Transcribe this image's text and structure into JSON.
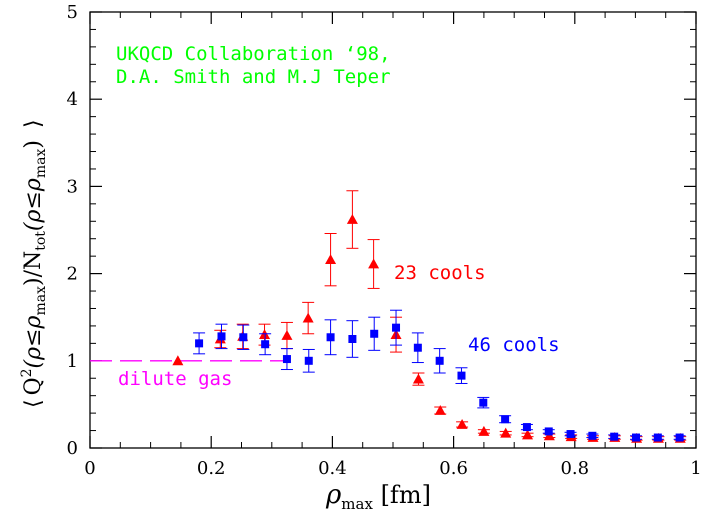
{
  "chart_data": {
    "type": "scatter",
    "xlabel": {
      "main": "ρ",
      "sub": "max",
      "unit": " [fm]"
    },
    "ylabel": {
      "open": "⟨",
      "q": "Q",
      "exp": "2",
      "arg1": "(ρ≤ρ",
      "sub1": "max",
      "close1": ")",
      "slash": "/",
      "n": "N",
      "sub2": "tot",
      "arg2": "(ρ≤ρ",
      "sub3": "max",
      "close2": ")",
      "end": "⟩"
    },
    "xlim": [
      0,
      1
    ],
    "ylim": [
      0,
      5
    ],
    "x_ticks": [
      "0",
      "0.2",
      "0.4",
      "0.6",
      "0.8",
      "1"
    ],
    "y_ticks": [
      "0",
      "1",
      "2",
      "3",
      "4",
      "5"
    ],
    "grid": false,
    "annotations": {
      "title_line1": "UKQCD Collaboration ‘98,",
      "title_line2": "D.A. Smith and M.J Teper",
      "label_23": "23 cools",
      "label_46": "46 cools",
      "dilute_gas": "dilute gas"
    },
    "reference_line": {
      "name": "dilute gas",
      "y": 1.0,
      "x_range": [
        0,
        0.33
      ],
      "color": "#ff00ff"
    },
    "series": [
      {
        "name": "23 cools",
        "marker": "triangle",
        "color": "#ff0000",
        "points": [
          {
            "x": 0.145,
            "y": 1.0,
            "err": 0.0
          },
          {
            "x": 0.215,
            "y": 1.25,
            "err": 0.1
          },
          {
            "x": 0.252,
            "y": 1.28,
            "err": 0.14
          },
          {
            "x": 0.288,
            "y": 1.3,
            "err": 0.12
          },
          {
            "x": 0.325,
            "y": 1.29,
            "err": 0.15
          },
          {
            "x": 0.36,
            "y": 1.49,
            "err": 0.18
          },
          {
            "x": 0.397,
            "y": 2.16,
            "err": 0.3
          },
          {
            "x": 0.433,
            "y": 2.62,
            "err": 0.33
          },
          {
            "x": 0.468,
            "y": 2.11,
            "err": 0.28
          },
          {
            "x": 0.505,
            "y": 1.3,
            "err": 0.2
          },
          {
            "x": 0.542,
            "y": 0.79,
            "err": 0.07
          },
          {
            "x": 0.578,
            "y": 0.43,
            "err": 0.04
          },
          {
            "x": 0.614,
            "y": 0.27,
            "err": 0.03
          },
          {
            "x": 0.65,
            "y": 0.19,
            "err": 0.02
          },
          {
            "x": 0.686,
            "y": 0.17,
            "err": 0.02
          },
          {
            "x": 0.722,
            "y": 0.15,
            "err": 0.02
          },
          {
            "x": 0.758,
            "y": 0.14,
            "err": 0.02
          },
          {
            "x": 0.794,
            "y": 0.13,
            "err": 0.02
          },
          {
            "x": 0.83,
            "y": 0.12,
            "err": 0.02
          },
          {
            "x": 0.866,
            "y": 0.12,
            "err": 0.02
          },
          {
            "x": 0.902,
            "y": 0.11,
            "err": 0.02
          },
          {
            "x": 0.938,
            "y": 0.11,
            "err": 0.02
          },
          {
            "x": 0.974,
            "y": 0.11,
            "err": 0.02
          }
        ]
      },
      {
        "name": "46 cools",
        "marker": "square",
        "color": "#0000ff",
        "points": [
          {
            "x": 0.18,
            "y": 1.2,
            "err": 0.12
          },
          {
            "x": 0.217,
            "y": 1.28,
            "err": 0.14
          },
          {
            "x": 0.253,
            "y": 1.27,
            "err": 0.14
          },
          {
            "x": 0.289,
            "y": 1.19,
            "err": 0.12
          },
          {
            "x": 0.325,
            "y": 1.02,
            "err": 0.12
          },
          {
            "x": 0.361,
            "y": 1.0,
            "err": 0.13
          },
          {
            "x": 0.397,
            "y": 1.27,
            "err": 0.2
          },
          {
            "x": 0.433,
            "y": 1.25,
            "err": 0.21
          },
          {
            "x": 0.469,
            "y": 1.31,
            "err": 0.19
          },
          {
            "x": 0.505,
            "y": 1.38,
            "err": 0.2
          },
          {
            "x": 0.541,
            "y": 1.15,
            "err": 0.17
          },
          {
            "x": 0.577,
            "y": 1.0,
            "err": 0.14
          },
          {
            "x": 0.613,
            "y": 0.83,
            "err": 0.09
          },
          {
            "x": 0.649,
            "y": 0.52,
            "err": 0.06
          },
          {
            "x": 0.685,
            "y": 0.33,
            "err": 0.04
          },
          {
            "x": 0.721,
            "y": 0.24,
            "err": 0.03
          },
          {
            "x": 0.757,
            "y": 0.19,
            "err": 0.02
          },
          {
            "x": 0.793,
            "y": 0.16,
            "err": 0.02
          },
          {
            "x": 0.829,
            "y": 0.14,
            "err": 0.02
          },
          {
            "x": 0.865,
            "y": 0.13,
            "err": 0.02
          },
          {
            "x": 0.901,
            "y": 0.12,
            "err": 0.02
          },
          {
            "x": 0.937,
            "y": 0.12,
            "err": 0.02
          },
          {
            "x": 0.973,
            "y": 0.12,
            "err": 0.02
          }
        ]
      }
    ]
  }
}
